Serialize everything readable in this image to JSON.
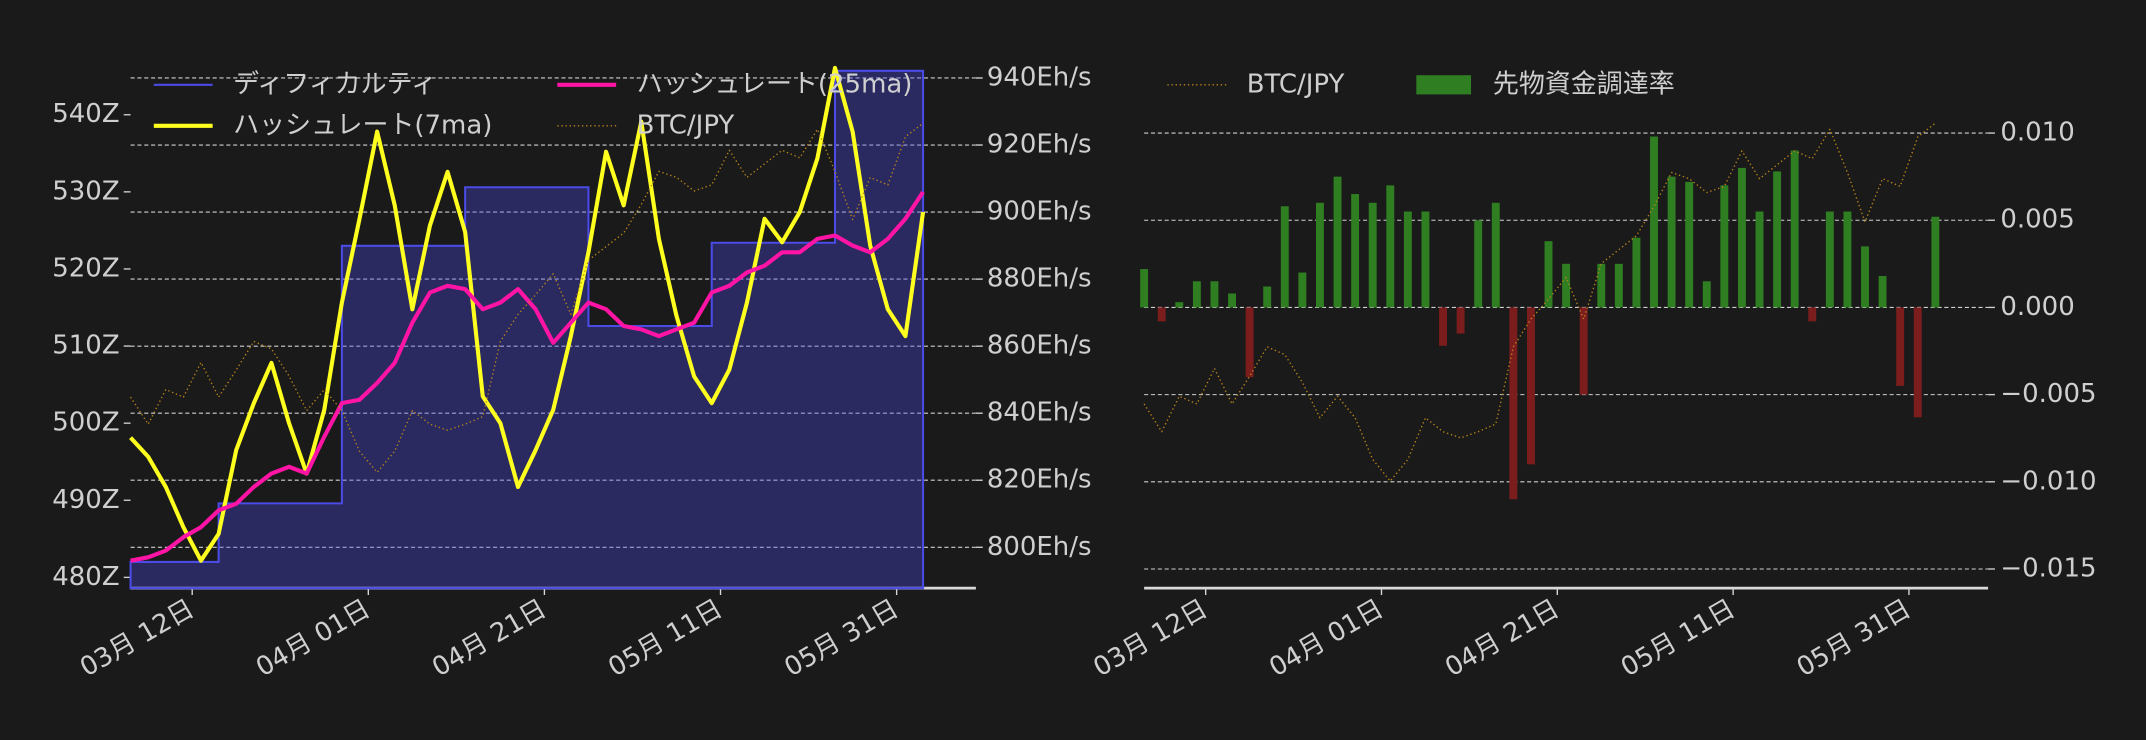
{
  "chart_data": [
    {
      "type": "line",
      "x": [
        "03-05",
        "03-07",
        "03-09",
        "03-11",
        "03-13",
        "03-15",
        "03-17",
        "03-19",
        "03-21",
        "03-23",
        "03-25",
        "03-27",
        "03-29",
        "03-31",
        "04-02",
        "04-04",
        "04-06",
        "04-08",
        "04-10",
        "04-12",
        "04-14",
        "04-16",
        "04-18",
        "04-20",
        "04-22",
        "04-24",
        "04-26",
        "04-28",
        "04-30",
        "05-02",
        "05-04",
        "05-06",
        "05-08",
        "05-10",
        "05-12",
        "05-14",
        "05-16",
        "05-18",
        "05-20",
        "05-22",
        "05-24",
        "05-26",
        "05-28",
        "05-30",
        "06-01",
        "06-03"
      ],
      "xlim": [
        "03-05",
        "06-09"
      ],
      "xticks": [
        {
          "value": "03-12",
          "label": "03月 12日"
        },
        {
          "value": "04-01",
          "label": "04月 01日"
        },
        {
          "value": "04-21",
          "label": "04月 21日"
        },
        {
          "value": "05-11",
          "label": "05月 11日"
        },
        {
          "value": "05-31",
          "label": "05月 31日"
        }
      ],
      "ylim": [
        478.6,
        546.9
      ],
      "yticks": [
        {
          "value": 480,
          "label": "480Z"
        },
        {
          "value": 490,
          "label": "490Z"
        },
        {
          "value": 500,
          "label": "500Z"
        },
        {
          "value": 510,
          "label": "510Z"
        },
        {
          "value": 520,
          "label": "520Z"
        },
        {
          "value": 530,
          "label": "530Z"
        },
        {
          "value": 540,
          "label": "540Z"
        }
      ],
      "y2lim": [
        787.8,
        944.9
      ],
      "y2ticks": [
        {
          "value": 800,
          "label": "800Eh/s"
        },
        {
          "value": 820,
          "label": "820Eh/s"
        },
        {
          "value": 840,
          "label": "840Eh/s"
        },
        {
          "value": 860,
          "label": "860Eh/s"
        },
        {
          "value": 880,
          "label": "880Eh/s"
        },
        {
          "value": 900,
          "label": "900Eh/s"
        },
        {
          "value": 920,
          "label": "920Eh/s"
        },
        {
          "value": 940,
          "label": "940Eh/s"
        }
      ],
      "y3lim": [
        8000000,
        11500000
      ],
      "grid": "y2",
      "legend": "upper left",
      "legend_columns": 2,
      "series": [
        {
          "name": "ディフィカルティ",
          "type": "step-area",
          "color": "#4b4be6",
          "values": [
            482,
            482,
            482,
            482,
            482,
            489.6,
            489.6,
            489.6,
            489.6,
            489.6,
            489.6,
            489.6,
            523,
            523,
            523,
            523,
            523,
            523,
            523,
            530.6,
            530.6,
            530.6,
            530.6,
            530.6,
            530.6,
            530.6,
            512.6,
            512.6,
            512.6,
            512.6,
            512.6,
            512.6,
            512.6,
            523.4,
            523.4,
            523.4,
            523.4,
            523.4,
            523.4,
            523.4,
            545.7,
            545.7,
            545.7,
            545.7,
            545.7,
            545.7
          ]
        },
        {
          "name": "ハッシュレート(7ma)",
          "type": "line",
          "axis": "y2",
          "color": "#ffff1f",
          "values": [
            832.7,
            827,
            818,
            806,
            796,
            804,
            829,
            843,
            855,
            837,
            822,
            841,
            873,
            898,
            924,
            902,
            871,
            896,
            912,
            894,
            845,
            837,
            818,
            829,
            841,
            863,
            888,
            918,
            902,
            927,
            892,
            869,
            851,
            843,
            853,
            873,
            898,
            891,
            900,
            916,
            943,
            924,
            890,
            871,
            863,
            900
          ]
        },
        {
          "name": "ハッシュレート(25ma)",
          "type": "line",
          "axis": "y2",
          "color": "#ff14a5",
          "values": [
            796,
            797,
            799,
            803,
            806,
            811,
            813,
            818,
            822,
            824,
            822,
            833,
            843,
            844,
            849,
            855,
            867,
            876,
            878,
            877,
            871,
            873,
            877,
            871,
            861,
            867,
            873,
            871,
            866,
            865,
            863,
            865,
            867,
            876,
            878,
            882,
            884,
            888,
            888,
            892,
            893,
            890,
            888,
            892,
            898,
            906
          ]
        },
        {
          "name": "BTC/JPY",
          "type": "line",
          "style": "dotted",
          "axis": "y3",
          "color": "#b8821a",
          "values": [
            9270000,
            9090000,
            9320000,
            9270000,
            9500000,
            9270000,
            9450000,
            9640000,
            9590000,
            9410000,
            9180000,
            9320000,
            9180000,
            8910000,
            8770000,
            8910000,
            9180000,
            9090000,
            9050000,
            9090000,
            9140000,
            9640000,
            9820000,
            9950000,
            10090000,
            9820000,
            10180000,
            10270000,
            10360000,
            10550000,
            10770000,
            10730000,
            10640000,
            10680000,
            10910000,
            10730000,
            10820000,
            10910000,
            10860000,
            11050000,
            10770000,
            10450000,
            10730000,
            10680000,
            11000000,
            11090000
          ]
        }
      ]
    },
    {
      "type": "bar",
      "x": [
        "03-05",
        "03-07",
        "03-09",
        "03-11",
        "03-13",
        "03-15",
        "03-17",
        "03-19",
        "03-21",
        "03-23",
        "03-25",
        "03-27",
        "03-29",
        "03-31",
        "04-02",
        "04-04",
        "04-06",
        "04-08",
        "04-10",
        "04-12",
        "04-14",
        "04-16",
        "04-18",
        "04-20",
        "04-22",
        "04-24",
        "04-26",
        "04-28",
        "04-30",
        "05-02",
        "05-04",
        "05-06",
        "05-08",
        "05-10",
        "05-12",
        "05-14",
        "05-16",
        "05-18",
        "05-20",
        "05-22",
        "05-24",
        "05-26",
        "05-28",
        "05-30",
        "06-01",
        "06-03"
      ],
      "xlim": [
        "03-05",
        "06-09"
      ],
      "xticks": [
        {
          "value": "03-12",
          "label": "03月 12日"
        },
        {
          "value": "04-01",
          "label": "04月 01日"
        },
        {
          "value": "04-21",
          "label": "04月 21日"
        },
        {
          "value": "05-11",
          "label": "05月 11日"
        },
        {
          "value": "05-31",
          "label": "05月 31日"
        }
      ],
      "ylim": [
        -0.0161,
        0.0141
      ],
      "yticks": [
        {
          "value": -0.015,
          "label": "−0.015"
        },
        {
          "value": -0.01,
          "label": "−0.010"
        },
        {
          "value": -0.005,
          "label": "−0.005"
        },
        {
          "value": 0,
          "label": "0.000"
        },
        {
          "value": 0.005,
          "label": "0.005"
        },
        {
          "value": 0.01,
          "label": "0.010"
        }
      ],
      "y3lim": [
        8076000,
        11489000
      ],
      "grid": "y",
      "legend": "upper left",
      "legend_columns": 2,
      "series": [
        {
          "name": "BTC/JPY",
          "type": "line",
          "style": "dotted",
          "axis": "y3",
          "color": "#b8821a",
          "values": [
            9270000,
            9090000,
            9320000,
            9270000,
            9500000,
            9270000,
            9450000,
            9640000,
            9590000,
            9410000,
            9180000,
            9320000,
            9180000,
            8910000,
            8770000,
            8910000,
            9180000,
            9090000,
            9050000,
            9090000,
            9140000,
            9640000,
            9820000,
            9950000,
            10090000,
            9820000,
            10180000,
            10270000,
            10360000,
            10550000,
            10770000,
            10730000,
            10640000,
            10680000,
            10910000,
            10730000,
            10820000,
            10910000,
            10860000,
            11050000,
            10770000,
            10450000,
            10730000,
            10680000,
            11000000,
            11090000
          ]
        },
        {
          "name": "先物資金調達率",
          "type": "bar",
          "color": "#2f7f22",
          "negative_color": "#7c1d1d",
          "values": [
            0.0022,
            -0.0008,
            0.0003,
            0.0015,
            0.0015,
            0.0008,
            -0.004,
            0.0012,
            0.0058,
            0.002,
            0.006,
            0.0075,
            0.0065,
            0.006,
            0.007,
            0.0055,
            0.0055,
            -0.0022,
            -0.0015,
            0.005,
            0.006,
            -0.011,
            -0.009,
            0.0038,
            0.0025,
            -0.005,
            0.0025,
            0.0025,
            0.004,
            0.0098,
            0.0075,
            0.0072,
            0.0015,
            0.007,
            0.008,
            0.0055,
            0.0078,
            0.009,
            -0.0008,
            0.0055,
            0.0055,
            0.0035,
            0.0018,
            -0.0045,
            -0.0063,
            0.0052
          ]
        }
      ]
    }
  ]
}
